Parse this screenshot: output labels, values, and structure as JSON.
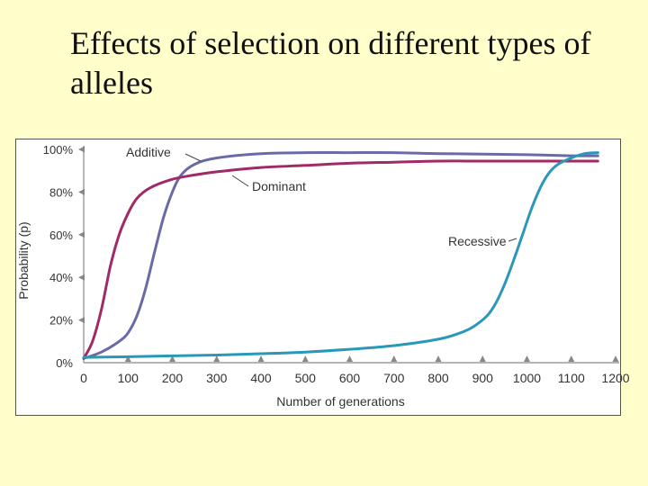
{
  "slide": {
    "title": "Effects of selection on different types of alleles"
  },
  "chart_data": {
    "type": "line",
    "title": "",
    "xlabel": "Number of generations",
    "ylabel": "Probability (p)",
    "xlim": [
      0,
      1200
    ],
    "ylim": [
      0,
      100
    ],
    "x_ticks": [
      "0",
      "100",
      "200",
      "300",
      "400",
      "500",
      "600",
      "700",
      "800",
      "900",
      "1000",
      "1100",
      "1200"
    ],
    "y_ticks": [
      "0%",
      "20%",
      "40%",
      "60%",
      "80%",
      "100%"
    ],
    "grid": false,
    "legend": "inline-labels",
    "series": [
      {
        "name": "Additive",
        "color": "#6a6aa6",
        "points": [
          [
            0,
            2
          ],
          [
            40,
            5
          ],
          [
            80,
            10
          ],
          [
            100,
            14
          ],
          [
            120,
            22
          ],
          [
            140,
            35
          ],
          [
            160,
            52
          ],
          [
            180,
            68
          ],
          [
            200,
            80
          ],
          [
            220,
            88
          ],
          [
            250,
            93
          ],
          [
            300,
            96
          ],
          [
            400,
            98
          ],
          [
            500,
            98.5
          ],
          [
            600,
            98.5
          ],
          [
            700,
            98.5
          ],
          [
            800,
            98
          ],
          [
            900,
            97.8
          ],
          [
            1000,
            97.5
          ],
          [
            1100,
            97
          ],
          [
            1160,
            97
          ]
        ]
      },
      {
        "name": "Dominant",
        "color": "#a02a66",
        "points": [
          [
            0,
            2
          ],
          [
            20,
            10
          ],
          [
            40,
            25
          ],
          [
            60,
            45
          ],
          [
            80,
            60
          ],
          [
            100,
            70
          ],
          [
            120,
            77
          ],
          [
            150,
            82
          ],
          [
            200,
            86
          ],
          [
            250,
            88
          ],
          [
            300,
            89.5
          ],
          [
            400,
            91.5
          ],
          [
            500,
            92.5
          ],
          [
            600,
            93.5
          ],
          [
            700,
            94
          ],
          [
            800,
            94.5
          ],
          [
            900,
            94.5
          ],
          [
            1000,
            94.5
          ],
          [
            1100,
            94.5
          ],
          [
            1160,
            94.5
          ]
        ]
      },
      {
        "name": "Recessive",
        "color": "#2a98b8",
        "points": [
          [
            0,
            2.5
          ],
          [
            100,
            2.8
          ],
          [
            200,
            3.2
          ],
          [
            300,
            3.6
          ],
          [
            400,
            4.2
          ],
          [
            500,
            5
          ],
          [
            600,
            6.3
          ],
          [
            700,
            8
          ],
          [
            800,
            11
          ],
          [
            850,
            14
          ],
          [
            880,
            17
          ],
          [
            910,
            22
          ],
          [
            930,
            28
          ],
          [
            950,
            37
          ],
          [
            970,
            48
          ],
          [
            990,
            60
          ],
          [
            1010,
            72
          ],
          [
            1030,
            82
          ],
          [
            1050,
            89
          ],
          [
            1070,
            93
          ],
          [
            1100,
            96
          ],
          [
            1130,
            98
          ],
          [
            1160,
            98.5
          ]
        ]
      }
    ]
  }
}
